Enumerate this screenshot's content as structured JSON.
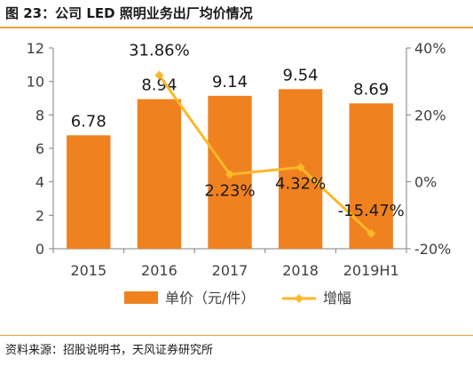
{
  "header": {
    "title": "图 23：公司 LED 照明业务出厂均价情况"
  },
  "footer": {
    "source": "资料来源：招股说明书，天风证券研究所"
  },
  "chart_data": {
    "type": "bar+line",
    "categories": [
      "2015",
      "2016",
      "2017",
      "2018",
      "2019H1"
    ],
    "series": [
      {
        "name": "单价（元/件）",
        "type": "bar",
        "axis": "left",
        "values": [
          6.78,
          8.94,
          9.14,
          9.54,
          8.69
        ],
        "labels": [
          "6.78",
          "8.94",
          "9.14",
          "9.54",
          "8.69"
        ],
        "color": "#f0811f"
      },
      {
        "name": "增幅",
        "type": "line",
        "axis": "right",
        "values": [
          null,
          31.86,
          2.23,
          4.32,
          -15.47
        ],
        "labels": [
          "",
          "31.86%",
          "2.23%",
          "4.32%",
          "-15.47%"
        ],
        "color": "#fbb829"
      }
    ],
    "y_left": {
      "min": 0,
      "max": 12,
      "ticks": [
        "0",
        "2",
        "4",
        "6",
        "8",
        "10",
        "12"
      ]
    },
    "y_right": {
      "min": -20,
      "max": 40,
      "ticks": [
        "-20%",
        "0%",
        "20%",
        "40%"
      ]
    },
    "legend": {
      "position": "bottom"
    }
  }
}
